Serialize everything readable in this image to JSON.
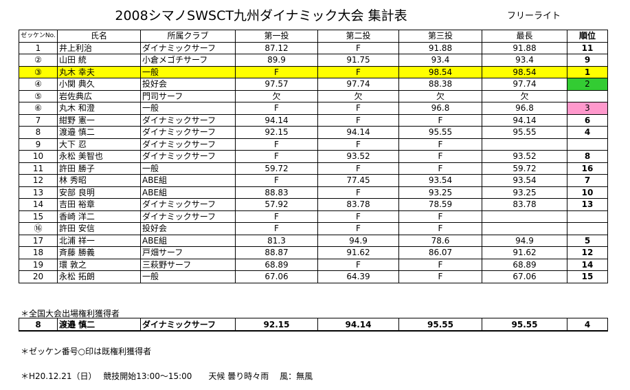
{
  "title": "2008シマノSWSCT九州ダイナミック大会 集計表",
  "category": "フリーライト",
  "headers": [
    "ゼッケンNo.",
    "氏名",
    "所属クラブ",
    "第一投",
    "第二投",
    "第三投",
    "最長",
    "順位"
  ],
  "rows": [
    {
      "no": "1",
      "name": "井上利治",
      "club": "ダイナミックサーフ",
      "t1": "87.12",
      "t2": "F",
      "t3": "91.88",
      "best": "91.88",
      "rank": "11",
      "style": ""
    },
    {
      "no": "②",
      "name": "山田 統",
      "club": "小倉メゴチサーフ",
      "t1": "89.9",
      "t2": "91.75",
      "t3": "93.4",
      "best": "93.4",
      "rank": "9",
      "style": ""
    },
    {
      "no": "③",
      "name": "丸木 幸夫",
      "club": "一般",
      "t1": "F",
      "t2": "F",
      "t3": "98.54",
      "best": "98.54",
      "rank": "1",
      "style": "highlight"
    },
    {
      "no": "④",
      "name": "小関 典久",
      "club": "投好会",
      "t1": "97.57",
      "t2": "97.74",
      "t3": "88.38",
      "best": "97.74",
      "rank": "2",
      "style": "green"
    },
    {
      "no": "⑤",
      "name": "岩佐典広",
      "club": "門司サーフ",
      "t1": "欠",
      "t2": "欠",
      "t3": "欠",
      "best": "欠",
      "rank": "",
      "style": ""
    },
    {
      "no": "⑥",
      "name": "丸木 和澄",
      "club": "一般",
      "t1": "F",
      "t2": "F",
      "t3": "96.8",
      "best": "96.8",
      "rank": "3",
      "style": "pink"
    },
    {
      "no": "7",
      "name": "紺野 憲一",
      "club": "ダイナミックサーフ",
      "t1": "94.14",
      "t2": "F",
      "t3": "F",
      "best": "94.14",
      "rank": "6",
      "style": ""
    },
    {
      "no": "8",
      "name": "渡邉 慎二",
      "club": "ダイナミックサーフ",
      "t1": "92.15",
      "t2": "94.14",
      "t3": "95.55",
      "best": "95.55",
      "rank": "4",
      "style": ""
    },
    {
      "no": "9",
      "name": "大下 忍",
      "club": "ダイナミックサーフ",
      "t1": "F",
      "t2": "F",
      "t3": "F",
      "best": "",
      "rank": "",
      "style": ""
    },
    {
      "no": "10",
      "name": "永松 美智也",
      "club": "ダイナミックサーフ",
      "t1": "F",
      "t2": "93.52",
      "t3": "F",
      "best": "93.52",
      "rank": "8",
      "style": ""
    },
    {
      "no": "11",
      "name": "許田 勝子",
      "club": "一般",
      "t1": "59.72",
      "t2": "F",
      "t3": "F",
      "best": "59.72",
      "rank": "16",
      "style": ""
    },
    {
      "no": "12",
      "name": "林 秀昭",
      "club": "ABE組",
      "t1": "F",
      "t2": "77.45",
      "t3": "93.54",
      "best": "93.54",
      "rank": "7",
      "style": ""
    },
    {
      "no": "13",
      "name": "安部 良明",
      "club": "ABE組",
      "t1": "88.83",
      "t2": "F",
      "t3": "93.25",
      "best": "93.25",
      "rank": "10",
      "style": ""
    },
    {
      "no": "14",
      "name": "吉田 裕章",
      "club": "ダイナミックサーフ",
      "t1": "57.92",
      "t2": "83.78",
      "t3": "78.59",
      "best": "83.78",
      "rank": "13",
      "style": ""
    },
    {
      "no": "15",
      "name": "香崎 洋二",
      "club": "ダイナミックサーフ",
      "t1": "F",
      "t2": "F",
      "t3": "F",
      "best": "",
      "rank": "",
      "style": ""
    },
    {
      "no": "⑯",
      "name": "許田 安信",
      "club": "投好会",
      "t1": "F",
      "t2": "F",
      "t3": "F",
      "best": "",
      "rank": "",
      "style": ""
    },
    {
      "no": "17",
      "name": "北浦 祥一",
      "club": "ABE組",
      "t1": "81.3",
      "t2": "94.9",
      "t3": "78.6",
      "best": "94.9",
      "rank": "5",
      "style": ""
    },
    {
      "no": "18",
      "name": "斉藤 勝義",
      "club": "戸畑サーフ",
      "t1": "88.87",
      "t2": "91.62",
      "t3": "86.07",
      "best": "91.62",
      "rank": "12",
      "style": ""
    },
    {
      "no": "19",
      "name": "環 敦之",
      "club": "三萩野サーフ",
      "t1": "68.89",
      "t2": "F",
      "t3": "F",
      "best": "68.89",
      "rank": "14",
      "style": ""
    },
    {
      "no": "20",
      "name": "永松 拓朗",
      "club": "一般",
      "t1": "67.06",
      "t2": "64.39",
      "t3": "F",
      "best": "67.06",
      "rank": "15",
      "style": ""
    }
  ],
  "qualifier_note": "＊全国大会出場権利獲得者",
  "qualifier": {
    "no": "8",
    "name": "渡邉 慎二",
    "club": "ダイナミックサーフ",
    "t1": "92.15",
    "t2": "94.14",
    "t3": "95.55",
    "best": "95.55",
    "rank": "4"
  },
  "marker_note": "＊ゼッケン番号○印は既権利獲得者",
  "footer": "＊H20.12.21（日）　 競技開始13:00～15:00　　天候 曇り時々雨　 風：無風",
  "colors": {
    "highlight": "#ffff00",
    "green": "#33cc33",
    "pink": "#ff99cc"
  }
}
